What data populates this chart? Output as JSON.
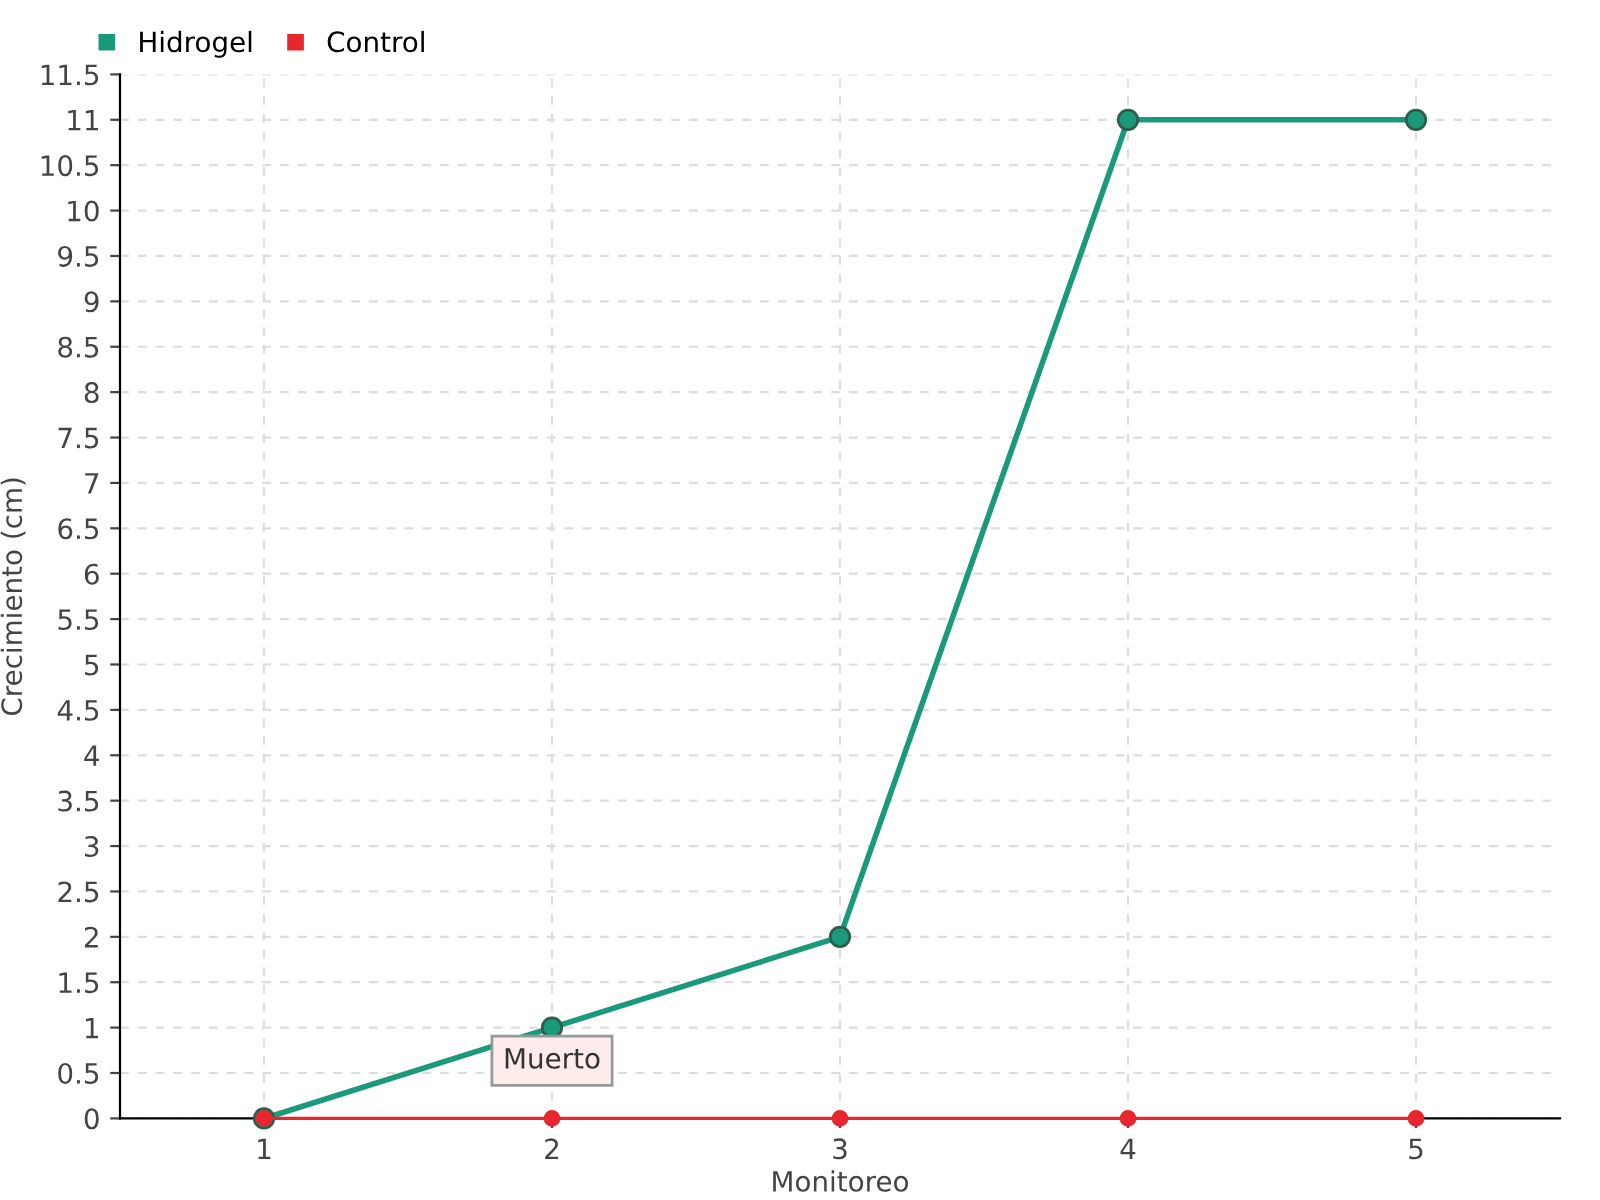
{
  "chart_data": {
    "type": "line",
    "xlabel": "Monitoreo",
    "ylabel": "Crecimiento (cm)",
    "categories": [
      "1",
      "2",
      "3",
      "4",
      "5"
    ],
    "series": [
      {
        "name": "Hidrogel",
        "color": "#1a9a7a",
        "values": [
          0,
          1,
          2,
          11,
          11
        ]
      },
      {
        "name": "Control",
        "color": "#e8262e",
        "values": [
          0,
          0,
          0,
          0,
          0
        ]
      }
    ],
    "ylim": [
      0,
      11.5
    ],
    "yticks": [
      0,
      0.5,
      1,
      1.5,
      2,
      2.5,
      3,
      3.5,
      4,
      4.5,
      5,
      5.5,
      6,
      6.5,
      7,
      7.5,
      8,
      8.5,
      9,
      9.5,
      10,
      10.5,
      11,
      11.5
    ],
    "grid": true,
    "legend": "top left",
    "marker": "circle",
    "line_style": "solid",
    "annotations": [
      {
        "text": "Muerto",
        "x": "2",
        "y": 0
      }
    ]
  }
}
